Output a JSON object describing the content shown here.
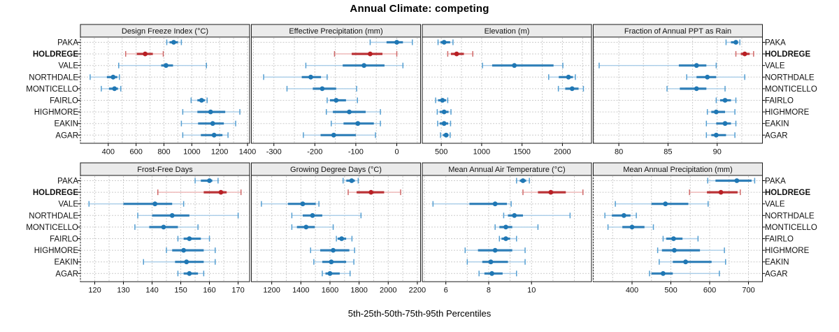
{
  "figure": {
    "title": "Annual Climate: competing",
    "caption": "5th-25th-50th-75th-95th Percentiles"
  },
  "chart_data": {
    "type": "dot-interval",
    "title": "Annual Climate: competing",
    "xlabel": "5th-25th-50th-75th-95th Percentiles",
    "percentiles_order": [
      "5th",
      "25th",
      "50th",
      "75th",
      "95th"
    ],
    "stations": [
      "PAKA",
      "HOLDREGE",
      "VALE",
      "NORTHDALE",
      "MONTICELLO",
      "FAIRLO",
      "HIGHMORE",
      "EAKIN",
      "AGAR"
    ],
    "highlight_station": "HOLDREGE",
    "colors": {
      "point_normal": "#1f77b4",
      "band_normal": "#2f7fb8",
      "whisker_normal": "#a9cde8",
      "cap_normal": "#559fd2",
      "point_highlight": "#b81f24",
      "band_highlight": "#bb3438",
      "whisker_highlight": "#edb3b3",
      "cap_highlight": "#d06a6a",
      "grid": "#cccccc",
      "header_bg": "#ebebeb",
      "border": "#1a1a1a"
    },
    "panels": [
      {
        "title": "Design Freeze Index (°C)",
        "ticks": [
          400,
          600,
          800,
          1000,
          1200,
          1400
        ],
        "minor_step": 100,
        "domain": [
          200,
          1415
        ],
        "values": [
          [
            820,
            840,
            870,
            900,
            925
          ],
          [
            525,
            605,
            665,
            720,
            795
          ],
          [
            475,
            780,
            815,
            865,
            1105
          ],
          [
            270,
            390,
            435,
            465,
            480
          ],
          [
            350,
            405,
            445,
            470,
            490
          ],
          [
            995,
            1040,
            1070,
            1095,
            1110
          ],
          [
            935,
            1040,
            1135,
            1240,
            1345
          ],
          [
            925,
            1045,
            1150,
            1230,
            1315
          ],
          [
            935,
            1065,
            1160,
            1220,
            1260
          ]
        ]
      },
      {
        "title": "Effective Precipitation (mm)",
        "ticks": [
          -300,
          -200,
          -100,
          0
        ],
        "minor_step": 50,
        "domain": [
          -355,
          58
        ],
        "values": [
          [
            -65,
            -25,
            0,
            15,
            38
          ],
          [
            -152,
            -110,
            -65,
            -35,
            0
          ],
          [
            -222,
            -132,
            -80,
            -30,
            15
          ],
          [
            -325,
            -232,
            -210,
            -185,
            -170
          ],
          [
            -268,
            -205,
            -182,
            -148,
            -98
          ],
          [
            -170,
            -163,
            -148,
            -124,
            -96
          ],
          [
            -172,
            -156,
            -116,
            -76,
            -40
          ],
          [
            -160,
            -130,
            -95,
            -56,
            -40
          ],
          [
            -228,
            -186,
            -154,
            -100,
            -52
          ]
        ]
      },
      {
        "title": "Elevation (m)",
        "ticks": [
          500,
          1000,
          1500,
          2000
        ],
        "minor_step": 250,
        "domain": [
          265,
          2360
        ],
        "values": [
          [
            460,
            490,
            535,
            610,
            645
          ],
          [
            580,
            620,
            690,
            780,
            890
          ],
          [
            1010,
            1130,
            1405,
            1890,
            2005
          ],
          [
            1830,
            1955,
            2075,
            2130,
            2160
          ],
          [
            1950,
            2035,
            2120,
            2200,
            2260
          ],
          [
            430,
            460,
            515,
            560,
            580
          ],
          [
            450,
            480,
            535,
            590,
            620
          ],
          [
            455,
            480,
            535,
            585,
            615
          ],
          [
            490,
            520,
            560,
            590,
            610
          ]
        ]
      },
      {
        "title": "Fraction of Annual PPT as Rain",
        "ticks": [
          80,
          85,
          90
        ],
        "minor_step": 2.5,
        "domain": [
          77.4,
          94.6
        ],
        "values": [
          [
            90.9,
            91.4,
            91.9,
            92.1,
            92.3
          ],
          [
            91.9,
            92.4,
            92.8,
            93.3,
            93.7
          ],
          [
            78.0,
            86.1,
            87.9,
            88.9,
            89.9
          ],
          [
            86.9,
            87.9,
            89.0,
            89.9,
            92.8
          ],
          [
            84.9,
            86.2,
            87.9,
            88.9,
            90.8
          ],
          [
            89.9,
            90.3,
            90.8,
            91.4,
            91.9
          ],
          [
            89.0,
            89.4,
            89.9,
            90.8,
            91.8
          ],
          [
            88.9,
            89.9,
            90.8,
            91.4,
            91.9
          ],
          [
            88.9,
            89.4,
            89.9,
            90.9,
            91.8
          ]
        ]
      },
      {
        "title": "Frost-Free Days",
        "ticks": [
          120,
          130,
          140,
          150,
          160,
          170
        ],
        "minor_step": 5,
        "domain": [
          115,
          174
        ],
        "values": [
          [
            155,
            157,
            160,
            161,
            163
          ],
          [
            142,
            158,
            164,
            166,
            171
          ],
          [
            118,
            130,
            141,
            147,
            151
          ],
          [
            135,
            140,
            147,
            153,
            170
          ],
          [
            134,
            139,
            144,
            149,
            156
          ],
          [
            149,
            151,
            153,
            157,
            160
          ],
          [
            145,
            147,
            151,
            158,
            162
          ],
          [
            137,
            148,
            152,
            158,
            162
          ],
          [
            149,
            151,
            153,
            156,
            158
          ]
        ]
      },
      {
        "title": "Growing Degree Days (°C)",
        "ticks": [
          1200,
          1400,
          1600,
          1800,
          2000,
          2200
        ],
        "minor_step": 100,
        "domain": [
          1060,
          2222
        ],
        "values": [
          [
            1690,
            1712,
            1749,
            1771,
            1794
          ],
          [
            1725,
            1783,
            1882,
            1972,
            2085
          ],
          [
            1129,
            1311,
            1413,
            1502,
            1524
          ],
          [
            1338,
            1413,
            1480,
            1547,
            1813
          ],
          [
            1338,
            1373,
            1436,
            1496,
            1622
          ],
          [
            1644,
            1653,
            1680,
            1711,
            1751
          ],
          [
            1467,
            1533,
            1622,
            1733,
            1769
          ],
          [
            1489,
            1547,
            1609,
            1711,
            1764
          ],
          [
            1547,
            1569,
            1600,
            1667,
            1738
          ]
        ]
      },
      {
        "title": "Mean Annual Air Temperature (°C)",
        "ticks": [
          6,
          8,
          10
        ],
        "minor_step": 1,
        "domain": [
          4.9,
          12.8
        ],
        "values": [
          [
            9.3,
            9.45,
            9.6,
            9.75,
            9.9
          ],
          [
            9.6,
            10.3,
            10.9,
            11.6,
            12.4
          ],
          [
            5.4,
            7.1,
            8.3,
            8.85,
            9.05
          ],
          [
            8.7,
            8.9,
            9.2,
            9.6,
            11.8
          ],
          [
            8.3,
            8.5,
            8.8,
            9.1,
            10.3
          ],
          [
            8.5,
            8.6,
            8.8,
            9.0,
            9.3
          ],
          [
            6.9,
            7.5,
            8.3,
            9.1,
            9.7
          ],
          [
            7.0,
            7.7,
            8.1,
            8.9,
            9.7
          ],
          [
            7.55,
            7.8,
            8.15,
            8.65,
            9.3
          ]
        ]
      },
      {
        "title": "Mean Annual Precipitation (mm)",
        "ticks": [
          400,
          500,
          600,
          700
        ],
        "minor_step": 50,
        "domain": [
          300,
          736
        ],
        "values": [
          [
            595,
            615,
            670,
            708,
            716
          ],
          [
            548,
            593,
            629,
            672,
            679
          ],
          [
            357,
            450,
            486,
            545,
            596
          ],
          [
            330,
            348,
            379,
            396,
            411
          ],
          [
            338,
            375,
            400,
            432,
            455
          ],
          [
            480,
            488,
            507,
            530,
            570
          ],
          [
            466,
            477,
            509,
            575,
            638
          ],
          [
            470,
            505,
            538,
            605,
            641
          ],
          [
            445,
            450,
            480,
            505,
            625
          ]
        ]
      }
    ]
  }
}
